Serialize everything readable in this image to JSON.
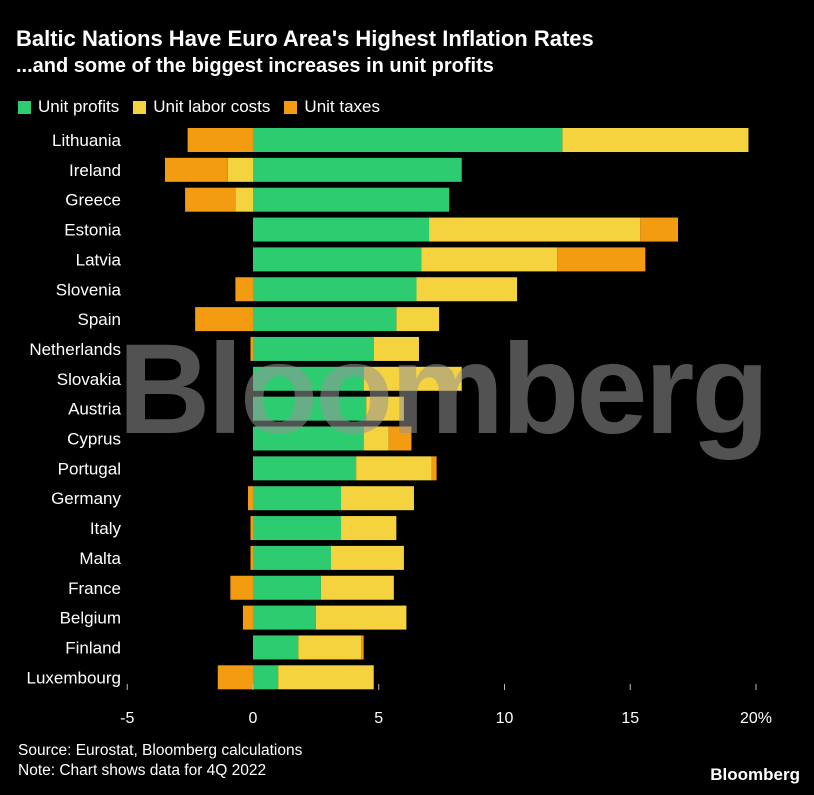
{
  "colors": {
    "background": "#000000",
    "unit_profits": "#2ecc71",
    "unit_labor_costs": "#f5d33f",
    "unit_taxes": "#f39c12",
    "text": "#ffffff"
  },
  "legend": [
    {
      "label": "Unit profits",
      "color_key": "unit_profits"
    },
    {
      "label": "Unit labor costs",
      "color_key": "unit_labor_costs"
    },
    {
      "label": "Unit taxes",
      "color_key": "unit_taxes"
    }
  ],
  "watermark": "Bloomberg",
  "footer": {
    "source": "Source: Eurostat, Bloomberg calculations",
    "note": "Note: Chart shows data for 4Q 2022",
    "brand": "Bloomberg"
  },
  "chart_data": {
    "type": "bar",
    "orientation": "horizontal",
    "stacked": true,
    "title": "Baltic Nations Have Euro Area's Highest Inflation Rates",
    "subtitle": "...and some of the biggest increases in unit profits",
    "xlabel": "",
    "ylabel": "",
    "xlim": [
      -5,
      20
    ],
    "xticks": [
      -5,
      0,
      5,
      10,
      15,
      20
    ],
    "xtick_labels": [
      "-5",
      "0",
      "5",
      "10",
      "15",
      "20%"
    ],
    "categories": [
      "Lithuania",
      "Ireland",
      "Greece",
      "Estonia",
      "Latvia",
      "Slovenia",
      "Spain",
      "Netherlands",
      "Slovakia",
      "Austria",
      "Cyprus",
      "Portugal",
      "Germany",
      "Italy",
      "Malta",
      "France",
      "Belgium",
      "Finland",
      "Luxembourg"
    ],
    "series": [
      {
        "name": "Unit profits",
        "values": [
          12.3,
          8.3,
          7.8,
          7.0,
          6.7,
          6.5,
          5.7,
          4.8,
          4.4,
          4.5,
          4.4,
          4.1,
          3.5,
          3.5,
          3.1,
          2.7,
          2.5,
          1.8,
          1.0
        ]
      },
      {
        "name": "Unit labor costs",
        "values": [
          7.4,
          -1.0,
          -0.7,
          8.4,
          5.4,
          4.0,
          1.7,
          1.8,
          3.9,
          1.5,
          1.0,
          3.0,
          2.9,
          2.2,
          2.9,
          2.9,
          3.6,
          2.5,
          3.8
        ]
      },
      {
        "name": "Unit taxes",
        "values": [
          -2.6,
          -2.5,
          -2.0,
          1.5,
          3.5,
          -0.7,
          -2.3,
          -0.1,
          0.0,
          0.0,
          0.9,
          0.2,
          -0.2,
          -0.1,
          -0.1,
          -0.9,
          -0.4,
          0.1,
          -1.4
        ]
      }
    ]
  }
}
